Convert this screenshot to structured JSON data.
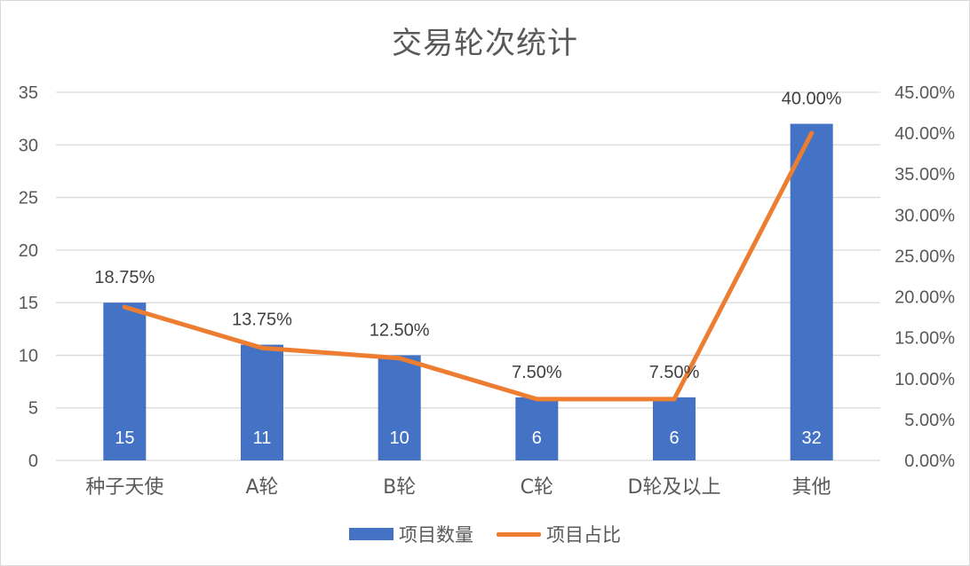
{
  "chart_data": {
    "type": "bar",
    "title": "交易轮次统计",
    "categories": [
      "种子天使",
      "A轮",
      "B轮",
      "C轮",
      "D轮及以上",
      "其他"
    ],
    "series": [
      {
        "name": "项目数量",
        "type": "bar",
        "axis": "left",
        "color": "#4472c4",
        "values": [
          15,
          11,
          10,
          6,
          6,
          32
        ],
        "data_labels": [
          "15",
          "11",
          "10",
          "6",
          "6",
          "32"
        ]
      },
      {
        "name": "项目占比",
        "type": "line",
        "axis": "right",
        "color": "#ed7d31",
        "values": [
          0.1875,
          0.1375,
          0.125,
          0.075,
          0.075,
          0.4
        ],
        "data_labels": [
          "18.75%",
          "13.75%",
          "12.50%",
          "7.50%",
          "7.50%",
          "40.00%"
        ]
      }
    ],
    "y_left": {
      "ylim": [
        0,
        35
      ],
      "ticks": [
        "0",
        "5",
        "10",
        "15",
        "20",
        "25",
        "30",
        "35"
      ]
    },
    "y_right": {
      "ylim": [
        0,
        0.45
      ],
      "ticks": [
        "0.00%",
        "5.00%",
        "10.00%",
        "15.00%",
        "20.00%",
        "25.00%",
        "30.00%",
        "35.00%",
        "40.00%",
        "45.00%"
      ]
    },
    "grid": true,
    "legend_position": "bottom"
  }
}
